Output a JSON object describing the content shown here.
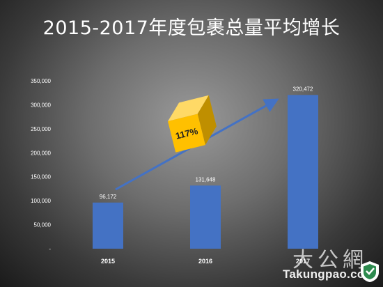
{
  "title": "2015-2017年度包裹总量平均增长",
  "chart_data": {
    "type": "bar",
    "categories": [
      "2015",
      "2016",
      "2017"
    ],
    "values": [
      96172,
      131648,
      320472
    ],
    "value_labels": [
      "96,172",
      "131,648",
      "320,472"
    ],
    "y_ticks": [
      "-",
      "50,000",
      "100,000",
      "150,000",
      "200,000",
      "250,000",
      "300,000",
      "350,000"
    ],
    "ylim": [
      0,
      350000
    ],
    "bar_color": "#4472c4",
    "annotation": {
      "text": "117%",
      "cube_color": "#ffc000",
      "arrow_color": "#4472c4"
    }
  },
  "watermark": {
    "chinese": "大公網",
    "english": "Takungpao.com"
  }
}
